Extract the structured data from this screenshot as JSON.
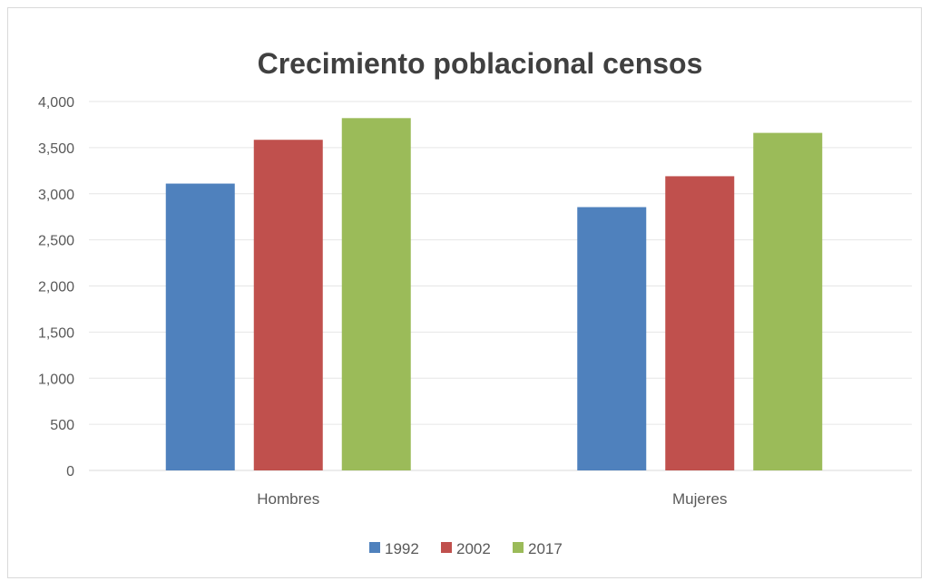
{
  "chart_data": {
    "type": "bar",
    "title": "Crecimiento poblacional censos",
    "categories": [
      "Hombres",
      "Mujeres"
    ],
    "series": [
      {
        "name": "1992",
        "values": [
          3110,
          2855
        ],
        "color": "#4f81bd"
      },
      {
        "name": "2002",
        "values": [
          3585,
          3190
        ],
        "color": "#c0504d"
      },
      {
        "name": "2017",
        "values": [
          3820,
          3660
        ],
        "color": "#9bbb59"
      }
    ],
    "ylim": [
      0,
      4000
    ],
    "yticks": [
      "0",
      "500",
      "1,000",
      "1,500",
      "2,000",
      "2,500",
      "3,000",
      "3,500",
      "4,000"
    ],
    "grid": true,
    "legend": "bottom"
  }
}
